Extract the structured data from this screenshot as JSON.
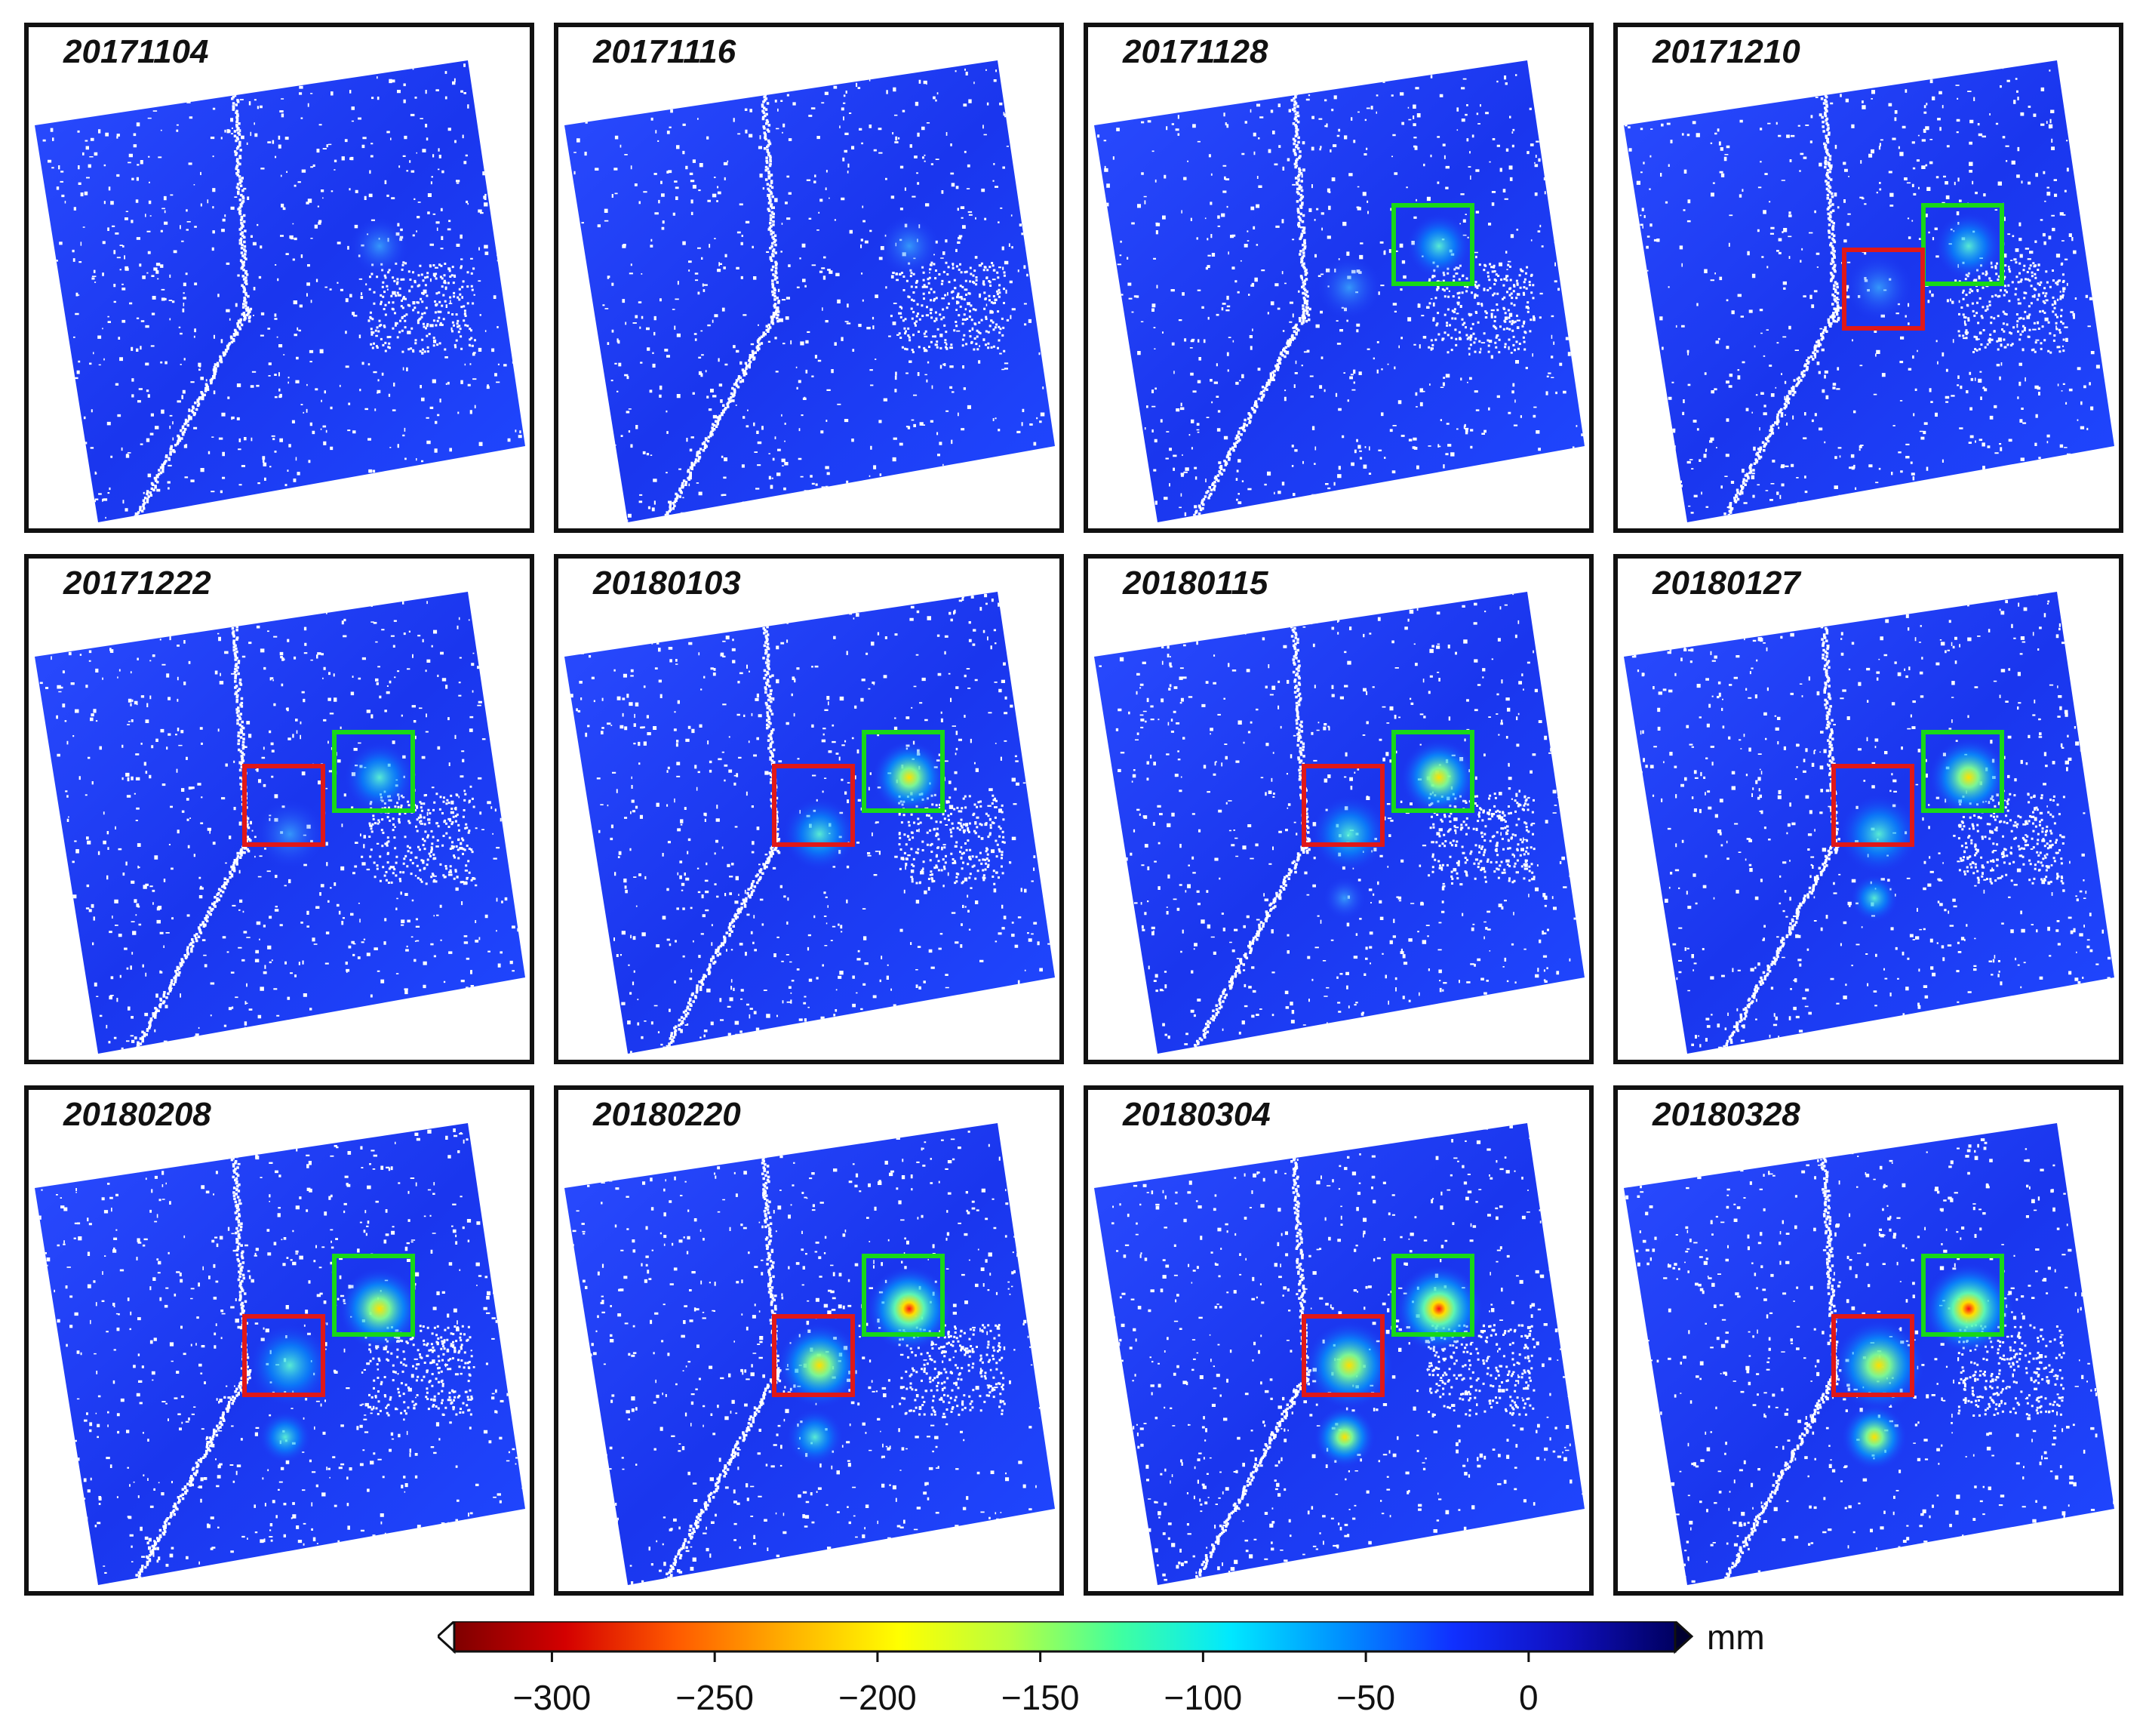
{
  "panels": [
    {
      "date": "20171104",
      "stage": 0
    },
    {
      "date": "20171116",
      "stage": 1
    },
    {
      "date": "20171128",
      "stage": 2
    },
    {
      "date": "20171210",
      "stage": 3
    },
    {
      "date": "20171222",
      "stage": 4
    },
    {
      "date": "20180103",
      "stage": 5
    },
    {
      "date": "20180115",
      "stage": 6
    },
    {
      "date": "20180127",
      "stage": 7
    },
    {
      "date": "20180208",
      "stage": 8
    },
    {
      "date": "20180220",
      "stage": 9
    },
    {
      "date": "20180304",
      "stage": 10
    },
    {
      "date": "20180328",
      "stage": 11
    }
  ],
  "colorbar": {
    "unit": "mm",
    "min": -330,
    "max": 45,
    "ticks": [
      {
        "value": -300,
        "label": "−300"
      },
      {
        "value": -250,
        "label": "−250"
      },
      {
        "value": -200,
        "label": "−200"
      },
      {
        "value": -150,
        "label": "−150"
      },
      {
        "value": -100,
        "label": "−100"
      },
      {
        "value": -50,
        "label": "−50"
      },
      {
        "value": 0,
        "label": "0"
      }
    ],
    "colors": [
      "#7f0000",
      "#d40000",
      "#ff5a00",
      "#ffb000",
      "#ffff00",
      "#b8ff40",
      "#40ffa0",
      "#00e8ff",
      "#0090ff",
      "#1030ff",
      "#1010c0",
      "#000060"
    ]
  },
  "colors": {
    "background_field": "#1a3cff",
    "box_red": "#e01818",
    "box_green": "#18d818",
    "frame": "#111111"
  }
}
